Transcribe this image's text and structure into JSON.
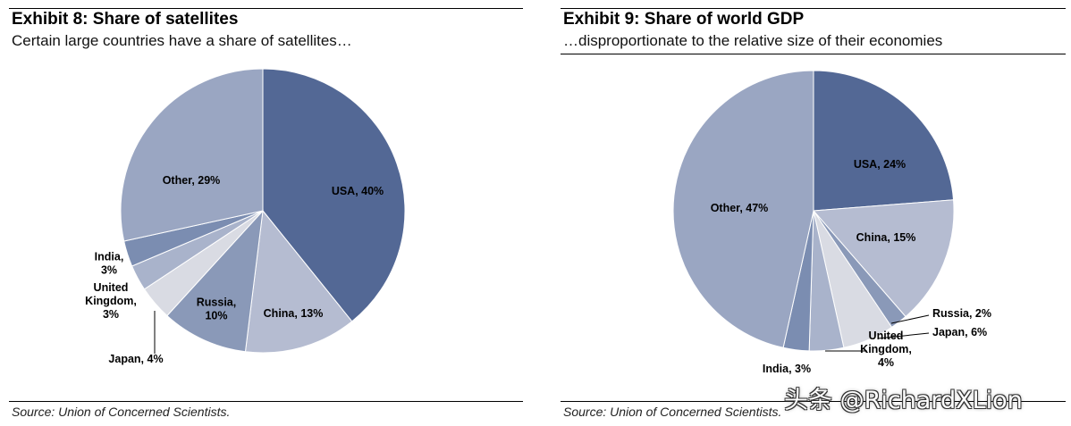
{
  "chart_data": [
    {
      "type": "pie",
      "title": "Exhibit 8: Share of satellites",
      "subtitle": "Certain large countries have a share of satellites…",
      "source": "Source: Union of Concerned Scientists.",
      "slices": [
        {
          "name": "USA",
          "value": 40,
          "label": [
            "USA, 40%"
          ],
          "color": "#536895"
        },
        {
          "name": "China",
          "value": 13,
          "label": [
            "China, 13%"
          ],
          "color": "#b5bcd1"
        },
        {
          "name": "Russia",
          "value": 10,
          "label": [
            "Russia,",
            "10%"
          ],
          "color": "#8a99b8"
        },
        {
          "name": "Japan",
          "value": 4,
          "label": [
            "Japan, 4%"
          ],
          "color": "#d9dbe3"
        },
        {
          "name": "United Kingdom",
          "value": 3,
          "label": [
            "United",
            "Kingdom,",
            "3%"
          ],
          "color": "#a9b3cb"
        },
        {
          "name": "India",
          "value": 3,
          "label": [
            "India,",
            "3%"
          ],
          "color": "#7b8db1"
        },
        {
          "name": "Other",
          "value": 29,
          "label": [
            "Other, 29%"
          ],
          "color": "#9aa6c2"
        }
      ]
    },
    {
      "type": "pie",
      "title": "Exhibit 9: Share of world GDP",
      "subtitle": "…disproportionate to the relative size of their economies",
      "source": "Source: Union of Concerned Scientists.",
      "slices": [
        {
          "name": "USA",
          "value": 24,
          "label": [
            "USA, 24%"
          ],
          "color": "#536895"
        },
        {
          "name": "China",
          "value": 15,
          "label": [
            "China, 15%"
          ],
          "color": "#b5bcd1"
        },
        {
          "name": "Russia",
          "value": 2,
          "label": [
            "Russia, 2%"
          ],
          "color": "#8a99b8"
        },
        {
          "name": "Japan",
          "value": 6,
          "label": [
            "Japan, 6%"
          ],
          "color": "#d9dbe3"
        },
        {
          "name": "United Kingdom",
          "value": 4,
          "label": [
            "United",
            "Kingdom,",
            "4%"
          ],
          "color": "#a9b3cb"
        },
        {
          "name": "India",
          "value": 3,
          "label": [
            "India, 3%"
          ],
          "color": "#7b8db1"
        },
        {
          "name": "Other",
          "value": 47,
          "label": [
            "Other, 47%"
          ],
          "color": "#9aa6c2"
        }
      ]
    }
  ],
  "watermark": "头条 @RichardXLion"
}
